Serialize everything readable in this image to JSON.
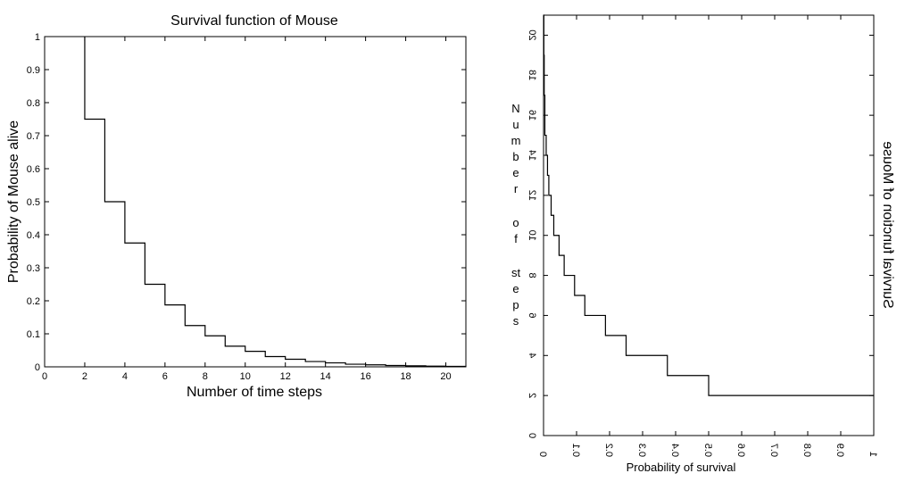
{
  "chart_data": [
    {
      "type": "line",
      "step": true,
      "title": "Survival function of Mouse",
      "xlabel": "Number of time steps",
      "ylabel": "Probability of Mouse alive",
      "xlim": [
        0,
        21
      ],
      "ylim": [
        0,
        1
      ],
      "xticks": [
        0,
        2,
        4,
        6,
        8,
        10,
        12,
        14,
        16,
        18,
        20
      ],
      "yticks": [
        0,
        0.1,
        0.2,
        0.3,
        0.4,
        0.5,
        0.6,
        0.7,
        0.8,
        0.9,
        1
      ],
      "x": [
        2,
        3,
        4,
        5,
        6,
        7,
        8,
        9,
        10,
        11,
        12,
        13,
        14,
        15,
        16,
        17,
        18,
        19,
        20,
        21
      ],
      "y": [
        0.75,
        0.5,
        0.375,
        0.25,
        0.1875,
        0.125,
        0.094,
        0.0625,
        0.047,
        0.031,
        0.023,
        0.016,
        0.012,
        0.008,
        0.006,
        0.004,
        0.003,
        0.002,
        0.0015,
        0.001
      ],
      "grid": false
    },
    {
      "type": "line",
      "step": true,
      "mirrored": true,
      "title": "Survival function of Mouse",
      "xlabel": "Probability of survival",
      "ylabel": "Number of steps",
      "xlim": [
        0,
        1
      ],
      "ylim": [
        0,
        21
      ],
      "xticks": [
        "0",
        "0.1",
        "0.2",
        "0.3",
        "0.4",
        "0.5",
        "0.6",
        "0.7",
        "0.8",
        "0.9",
        "1"
      ],
      "yticks": [
        "0",
        "2",
        "4",
        "6",
        "8",
        "10",
        "12",
        "14",
        "16",
        "18",
        "20"
      ],
      "points": [
        {
          "p": 0.001,
          "n": 21
        },
        {
          "p": 0.002,
          "n": 19
        },
        {
          "p": 0.004,
          "n": 17
        },
        {
          "p": 0.008,
          "n": 15
        },
        {
          "p": 0.012,
          "n": 14
        },
        {
          "p": 0.016,
          "n": 13
        },
        {
          "p": 0.023,
          "n": 12
        },
        {
          "p": 0.031,
          "n": 11
        },
        {
          "p": 0.047,
          "n": 10
        },
        {
          "p": 0.0625,
          "n": 9
        },
        {
          "p": 0.094,
          "n": 8
        },
        {
          "p": 0.125,
          "n": 7
        },
        {
          "p": 0.1875,
          "n": 6
        },
        {
          "p": 0.25,
          "n": 5
        },
        {
          "p": 0.375,
          "n": 4
        },
        {
          "p": 0.5,
          "n": 3
        },
        {
          "p": 0.75,
          "n": 2
        },
        {
          "p": 1.0,
          "n": 2
        }
      ],
      "grid": false
    }
  ]
}
